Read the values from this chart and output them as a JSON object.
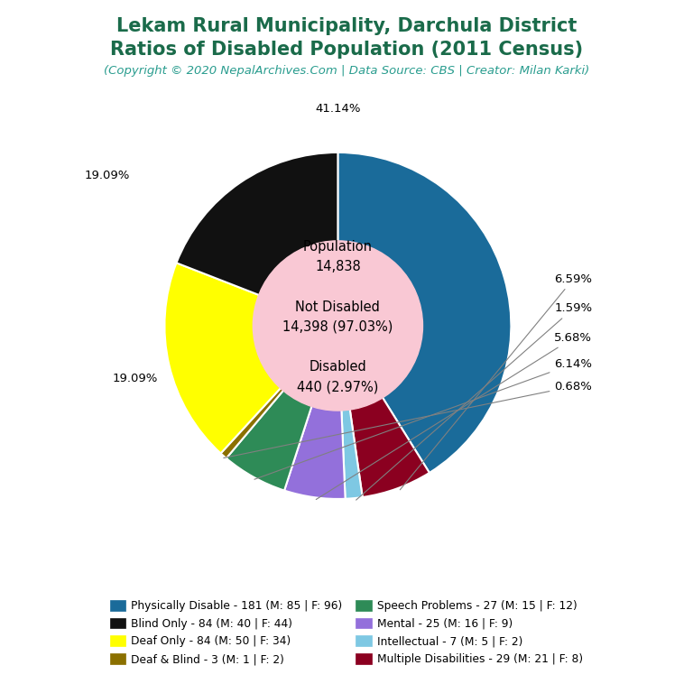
{
  "title_line1": "Lekam Rural Municipality, Darchula District",
  "title_line2": "Ratios of Disabled Population (2011 Census)",
  "subtitle": "(Copyright © 2020 NepalArchives.Com | Data Source: CBS | Creator: Milan Karki)",
  "title_color": "#1a6b4a",
  "subtitle_color": "#2a9d8f",
  "total_population": 14838,
  "not_disabled": 14398,
  "not_disabled_pct": 97.03,
  "disabled": 440,
  "disabled_pct": 2.97,
  "center_bg_color": "#f9c8d4",
  "segments": [
    {
      "label": "Physically Disable - 181 (M: 85 | F: 96)",
      "value": 181,
      "color": "#1a6b9a",
      "pct": "41.14%"
    },
    {
      "label": "Multiple Disabilities - 29 (M: 21 | F: 8)",
      "value": 29,
      "color": "#8b0020",
      "pct": "6.59%"
    },
    {
      "label": "Intellectual - 7 (M: 5 | F: 2)",
      "value": 7,
      "color": "#7ec8e3",
      "pct": "1.59%"
    },
    {
      "label": "Mental - 25 (M: 16 | F: 9)",
      "value": 25,
      "color": "#9370db",
      "pct": "5.68%"
    },
    {
      "label": "Speech Problems - 27 (M: 15 | F: 12)",
      "value": 27,
      "color": "#2e8b57",
      "pct": "6.14%"
    },
    {
      "label": "Deaf & Blind - 3 (M: 1 | F: 2)",
      "value": 3,
      "color": "#8b7000",
      "pct": "0.68%"
    },
    {
      "label": "Deaf Only - 84 (M: 50 | F: 34)",
      "value": 84,
      "color": "#ffff00",
      "pct": "19.09%"
    },
    {
      "label": "Blind Only - 84 (M: 40 | F: 44)",
      "value": 84,
      "color": "#111111",
      "pct": "19.09%"
    }
  ],
  "legend_left": [
    {
      "label": "Physically Disable - 181 (M: 85 | F: 96)",
      "color": "#1a6b9a"
    },
    {
      "label": "Deaf Only - 84 (M: 50 | F: 34)",
      "color": "#ffff00"
    },
    {
      "label": "Speech Problems - 27 (M: 15 | F: 12)",
      "color": "#2e8b57"
    },
    {
      "label": "Intellectual - 7 (M: 5 | F: 2)",
      "color": "#7ec8e3"
    }
  ],
  "legend_right": [
    {
      "label": "Blind Only - 84 (M: 40 | F: 44)",
      "color": "#111111"
    },
    {
      "label": "Deaf & Blind - 3 (M: 1 | F: 2)",
      "color": "#8b7000"
    },
    {
      "label": "Mental - 25 (M: 16 | F: 9)",
      "color": "#9370db"
    },
    {
      "label": "Multiple Disabilities - 29 (M: 21 | F: 8)",
      "color": "#8b0020"
    }
  ],
  "background_color": "#ffffff"
}
